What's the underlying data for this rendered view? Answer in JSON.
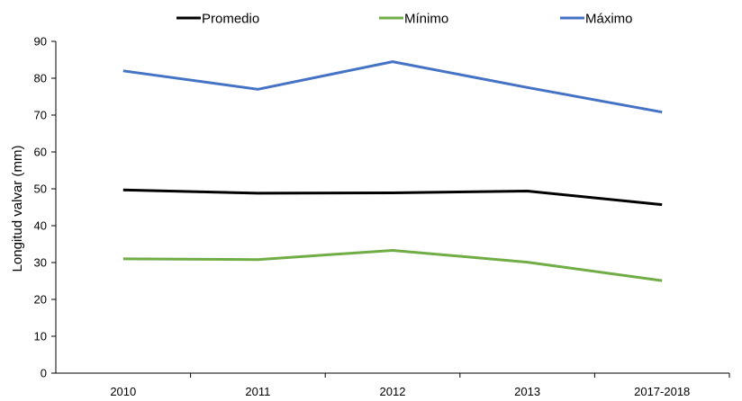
{
  "chart_data": {
    "type": "line",
    "categories": [
      "2010",
      "2011",
      "2012",
      "2013",
      "2017-2018"
    ],
    "series": [
      {
        "name": "Promedio",
        "color": "#000000",
        "values": [
          49.7,
          48.8,
          48.9,
          49.4,
          45.7
        ]
      },
      {
        "name": "Mínimo",
        "color": "#70ad47",
        "values": [
          31.0,
          30.8,
          33.3,
          30.1,
          25.1
        ]
      },
      {
        "name": "Máximo",
        "color": "#4472c4",
        "values": [
          82.0,
          77.0,
          84.5,
          77.5,
          70.8
        ]
      }
    ],
    "ylabel": "Longitud valvar (mm)",
    "xlabel": "",
    "ylim": [
      0,
      90
    ],
    "yticks": [
      0,
      10,
      20,
      30,
      40,
      50,
      60,
      70,
      80,
      90
    ],
    "grid": false,
    "legend_position": "top"
  }
}
